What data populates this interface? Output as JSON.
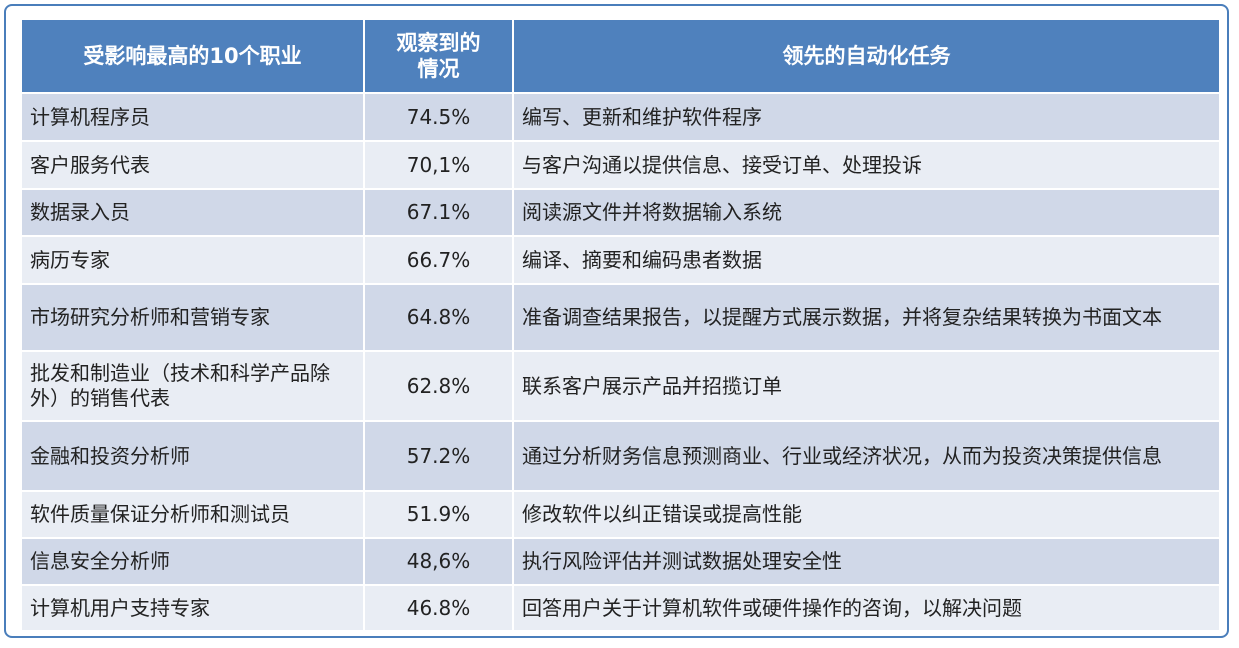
{
  "table": {
    "headers": [
      "受影响最高的10个职业",
      "观察到的情况",
      "领先的自动化任务"
    ],
    "rows": [
      [
        "计算机程序员",
        "74.5%",
        "编写、更新和维护软件程序"
      ],
      [
        "客户服务代表",
        "70,1%",
        "与客户沟通以提供信息、接受订单、处理投诉"
      ],
      [
        "数据录入员",
        "67.1%",
        "阅读源文件并将数据输入系统"
      ],
      [
        "病历专家",
        "66.7%",
        "编译、摘要和编码患者数据"
      ],
      [
        "市场研究分析师和营销专家",
        "64.8%",
        "准备调查结果报告，以提醒方式展示数据，并将复杂结果转换为书面文本"
      ],
      [
        "批发和制造业（技术和科学产品除外）的销售代表",
        "62.8%",
        "联系客户展示产品并招揽订单"
      ],
      [
        "金融和投资分析师",
        "57.2%",
        "通过分析财务信息预测商业、行业或经济状况，从而为投资决策提供信息"
      ],
      [
        "软件质量保证分析师和测试员",
        "51.9%",
        "修改软件以纠正错误或提高性能"
      ],
      [
        "信息安全分析师",
        "48,6%",
        "执行风险评估并测试数据处理安全性"
      ],
      [
        "计算机用户支持专家",
        "46.8%",
        "回答用户关于计算机软件或硬件操作的咨询，以解决问题"
      ]
    ]
  }
}
